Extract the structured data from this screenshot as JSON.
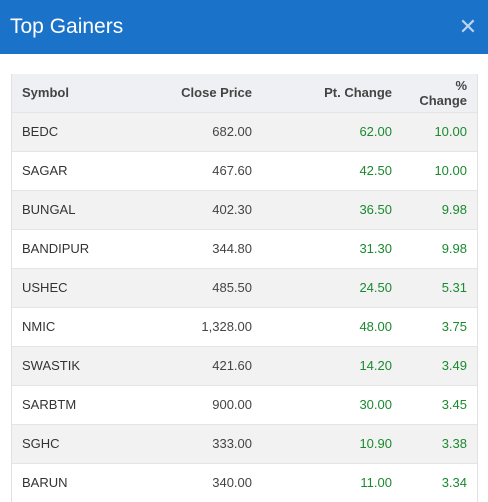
{
  "header": {
    "title": "Top Gainers",
    "close_icon": "close-icon"
  },
  "table": {
    "columns": [
      "Symbol",
      "Close Price",
      "Pt. Change",
      "% Change"
    ],
    "rows": [
      {
        "symbol": "BEDC",
        "close": "682.00",
        "pt": "62.00",
        "pct": "10.00"
      },
      {
        "symbol": "SAGAR",
        "close": "467.60",
        "pt": "42.50",
        "pct": "10.00"
      },
      {
        "symbol": "BUNGAL",
        "close": "402.30",
        "pt": "36.50",
        "pct": "9.98"
      },
      {
        "symbol": "BANDIPUR",
        "close": "344.80",
        "pt": "31.30",
        "pct": "9.98"
      },
      {
        "symbol": "USHEC",
        "close": "485.50",
        "pt": "24.50",
        "pct": "5.31"
      },
      {
        "symbol": "NMIC",
        "close": "1,328.00",
        "pt": "48.00",
        "pct": "3.75"
      },
      {
        "symbol": "SWASTIK",
        "close": "421.60",
        "pt": "14.20",
        "pct": "3.49"
      },
      {
        "symbol": "SARBTM",
        "close": "900.00",
        "pt": "30.00",
        "pct": "3.45"
      },
      {
        "symbol": "SGHC",
        "close": "333.00",
        "pt": "10.90",
        "pct": "3.38"
      },
      {
        "symbol": "BARUN",
        "close": "340.00",
        "pt": "11.00",
        "pct": "3.34"
      }
    ]
  },
  "colors": {
    "header_bg": "#1a73c9",
    "gain_green": "#1a8a2e"
  }
}
